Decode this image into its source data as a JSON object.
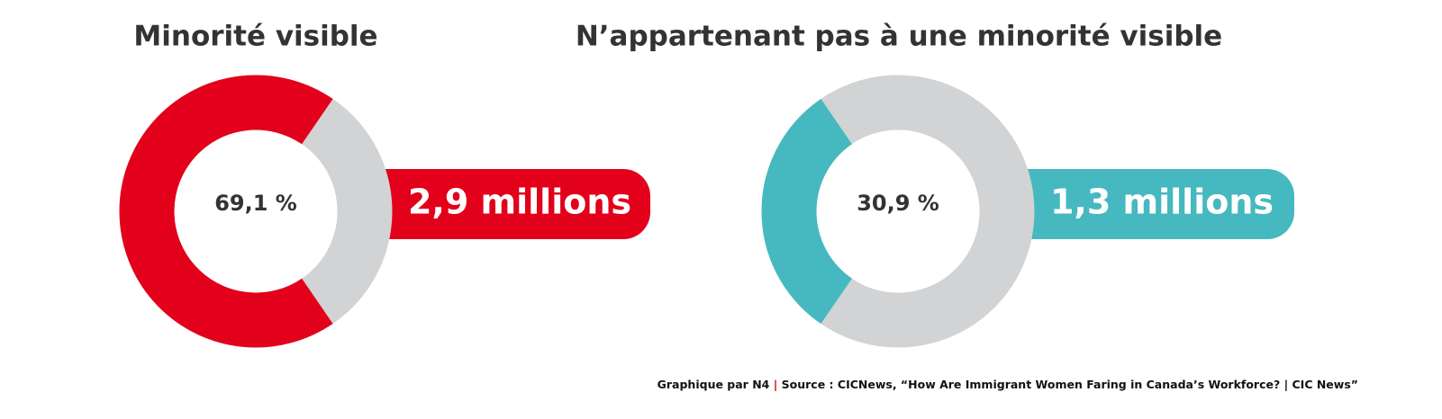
{
  "chart_data": [
    {
      "type": "donut",
      "title": "Minorité visible",
      "values": [
        69.1
      ],
      "value_labels": [
        "69,1 %"
      ],
      "color": "#e2001a",
      "track_color": "#d1d3d4",
      "annotation": "2,9 millions"
    },
    {
      "type": "donut",
      "title": "N’appartenant pas à une minorité visible",
      "values": [
        30.9
      ],
      "value_labels": [
        "30,9 %"
      ],
      "color": "#46b8c0",
      "track_color": "#d1d3d4",
      "annotation": "1,3 millions"
    }
  ],
  "footer": {
    "credit": "Graphique par N4",
    "separator": "|",
    "source": "Source : CICNews, “How Are Immigrant Women Faring in Canada’s Workforce? | CIC News”"
  }
}
